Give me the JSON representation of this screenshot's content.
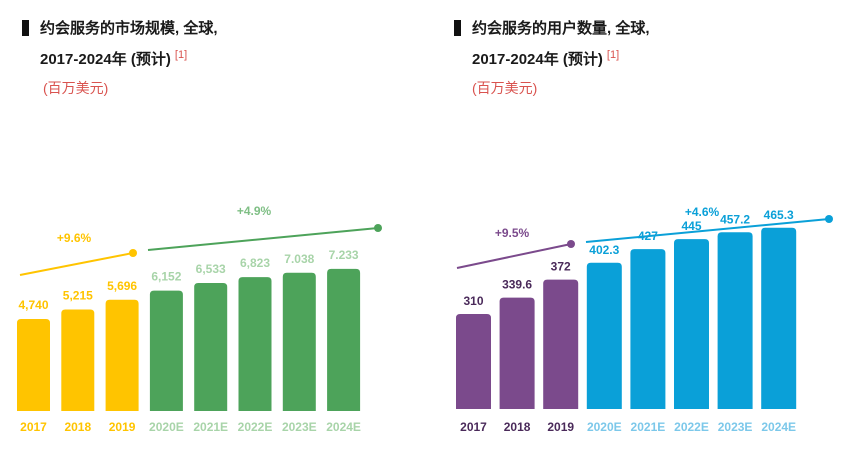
{
  "chart_data": [
    {
      "type": "bar",
      "title_line1": "约会服务的市场规模, 全球,",
      "title_line2": "2017-2024年 (预计)",
      "footnote": "[1]",
      "unit": "(百万美元)",
      "categories": [
        "2017",
        "2018",
        "2019",
        "2020E",
        "2021E",
        "2022E",
        "2023E",
        "2024E"
      ],
      "values": [
        4740,
        5215,
        5696,
        6152,
        6533,
        6823,
        7038,
        7233
      ],
      "value_labels": [
        "4,740",
        "5,215",
        "5,696",
        "6,152",
        "6,533",
        "6,823",
        "7.038",
        "7.233"
      ],
      "colors": [
        "#ffc400",
        "#ffc400",
        "#ffc400",
        "#4da35a",
        "#4da35a",
        "#4da35a",
        "#4da35a",
        "#4da35a"
      ],
      "label_colors": [
        "#ffc400",
        "#ffc400",
        "#ffc400",
        "#a8d4a9",
        "#a8d4a9",
        "#a8d4a9",
        "#a8d4a9",
        "#a8d4a9"
      ],
      "growth": [
        {
          "label": "+9.6%",
          "from": 0,
          "to": 2,
          "color": "#ffc400"
        },
        {
          "label": "+4.9%",
          "from": 3,
          "to": 7,
          "color": "#4da35a"
        }
      ]
    },
    {
      "type": "bar",
      "title_line1": "约会服务的用户数量, 全球,",
      "title_line2": "2017-2024年 (预计)",
      "footnote": "[1]",
      "unit": "(百万美元)",
      "categories": [
        "2017",
        "2018",
        "2019",
        "2020E",
        "2021E",
        "2022E",
        "2023E",
        "2024E"
      ],
      "values": [
        310,
        339.6,
        372,
        402.3,
        427,
        445,
        457.2,
        465.3
      ],
      "value_labels": [
        "310",
        "339.6",
        "372",
        "402.3",
        "427",
        "445",
        "457.2",
        "465.3"
      ],
      "colors": [
        "#7b4a8c",
        "#7b4a8c",
        "#7b4a8c",
        "#0aa0d8",
        "#0aa0d8",
        "#0aa0d8",
        "#0aa0d8",
        "#0aa0d8"
      ],
      "label_colors": [
        "#ffffff",
        "#ffffff",
        "#ffffff",
        "#ffffff",
        "#ffffff",
        "#ffffff",
        "#ffffff",
        "#ffffff"
      ],
      "cat_colors": [
        "#4a2a5a",
        "#4a2a5a",
        "#4a2a5a",
        "#7cc8ea",
        "#7cc8ea",
        "#7cc8ea",
        "#7cc8ea",
        "#7cc8ea"
      ],
      "growth": [
        {
          "label": "+9.5%",
          "from": 0,
          "to": 2,
          "color": "#7b4a8c"
        },
        {
          "label": "+4.6%",
          "from": 3,
          "to": 7,
          "color": "#0aa0d8"
        }
      ]
    }
  ]
}
